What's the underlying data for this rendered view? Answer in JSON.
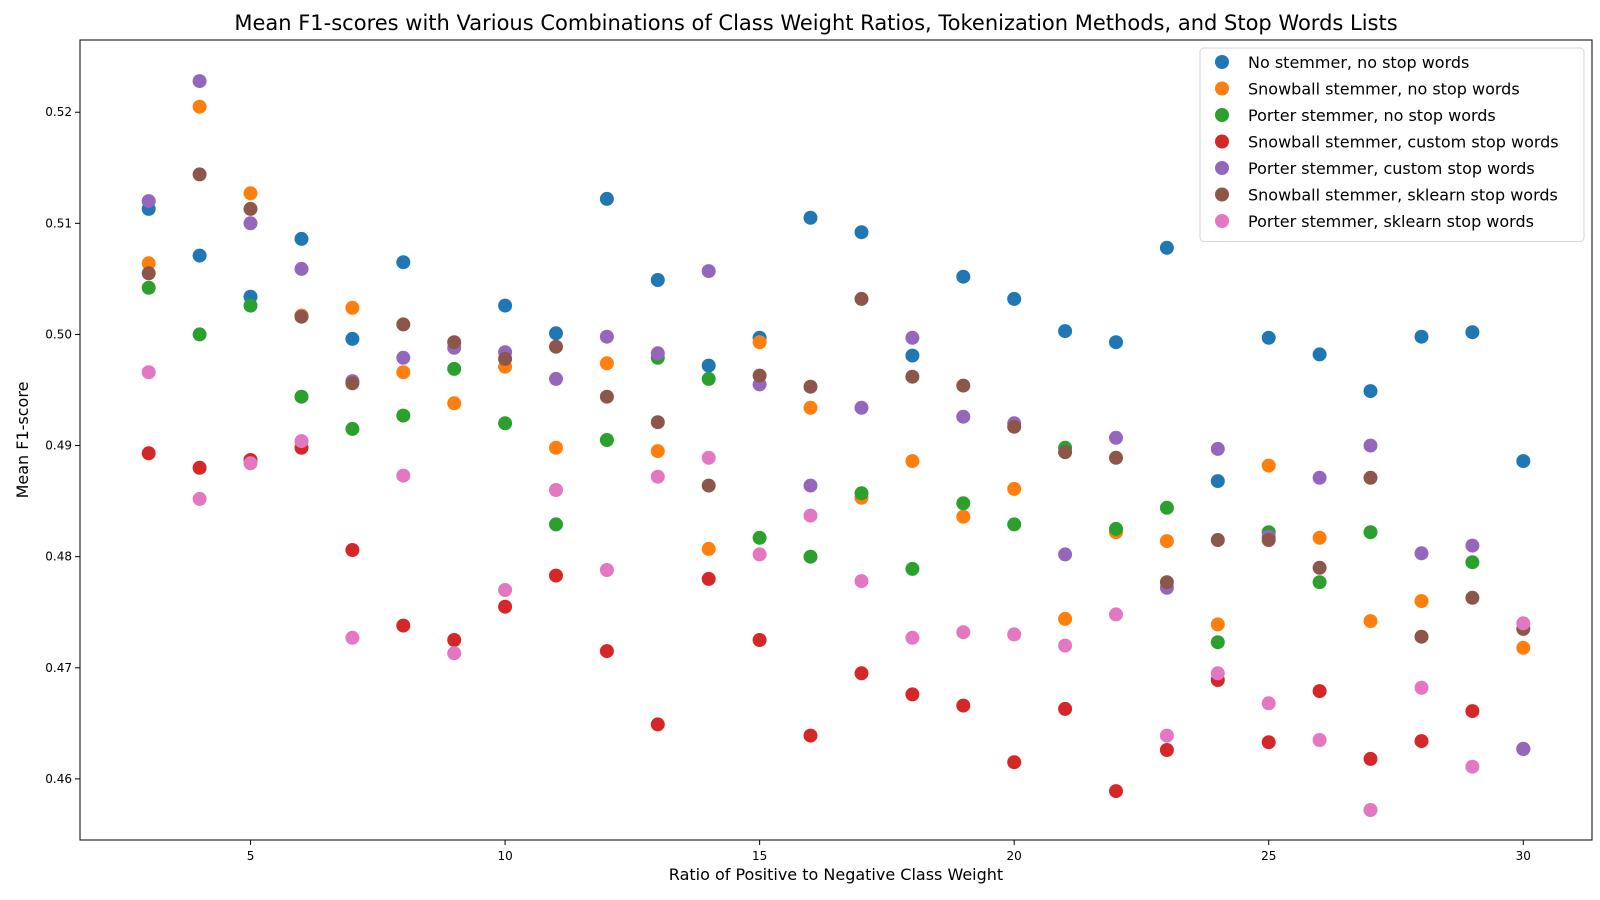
{
  "chart_data": {
    "type": "scatter",
    "title": "Mean F1-scores with Various Combinations of Class Weight Ratios, Tokenization Methods, and Stop Words Lists",
    "xlabel": "Ratio of Positive to Negative Class Weight",
    "ylabel": "Mean F1-score",
    "xlim": [
      1.65,
      31.35
    ],
    "ylim": [
      0.4545,
      0.5265
    ],
    "xticks": [
      5,
      10,
      15,
      20,
      25,
      30
    ],
    "yticks": [
      0.46,
      0.47,
      0.48,
      0.49,
      0.5,
      0.51,
      0.52
    ],
    "grid": false,
    "legend_position": "top-right",
    "x": [
      3,
      4,
      5,
      6,
      7,
      8,
      9,
      10,
      11,
      12,
      13,
      14,
      15,
      16,
      17,
      18,
      19,
      20,
      21,
      22,
      23,
      24,
      25,
      26,
      27,
      28,
      29,
      30
    ],
    "series": [
      {
        "name": "No stemmer, no stop words",
        "color": "#1f77b4",
        "values": [
          0.5113,
          0.5071,
          0.5034,
          0.5086,
          0.4996,
          0.5065,
          null,
          0.5026,
          0.5001,
          0.5122,
          0.5049,
          0.4972,
          0.4997,
          0.5105,
          0.5092,
          0.4981,
          0.5052,
          0.5032,
          0.5003,
          0.4993,
          0.5078,
          0.4868,
          0.4997,
          0.4982,
          0.4949,
          0.4998,
          0.5002,
          0.4886
        ]
      },
      {
        "name": "Snowball stemmer, no stop words",
        "color": "#ff7f0e",
        "values": [
          0.5064,
          0.5205,
          0.5127,
          0.5017,
          0.5024,
          0.4966,
          0.4938,
          0.4971,
          0.4898,
          0.4974,
          0.4895,
          0.4807,
          0.4993,
          0.4934,
          0.4853,
          0.4886,
          0.4836,
          0.4861,
          0.4744,
          0.4822,
          0.4814,
          0.4739,
          0.4882,
          0.4817,
          0.4742,
          0.476,
          null,
          0.4718
        ]
      },
      {
        "name": "Porter stemmer, no stop words",
        "color": "#2ca02c",
        "values": [
          0.5042,
          0.5,
          0.5026,
          0.4944,
          0.4915,
          0.4927,
          0.4969,
          0.492,
          0.4829,
          0.4905,
          0.4979,
          0.496,
          0.4817,
          0.48,
          0.4857,
          0.4789,
          0.4848,
          0.4829,
          0.4898,
          0.4825,
          0.4844,
          0.4723,
          0.4822,
          0.4777,
          0.4822,
          null,
          0.4795,
          null
        ]
      },
      {
        "name": "Snowball stemmer, custom stop words",
        "color": "#d62728",
        "values": [
          0.4893,
          0.488,
          0.4887,
          0.4898,
          0.4806,
          0.4738,
          0.4725,
          0.4755,
          0.4783,
          0.4715,
          0.4649,
          0.478,
          0.4725,
          0.4639,
          0.4695,
          0.4676,
          0.4666,
          0.4615,
          0.4663,
          0.4589,
          0.4626,
          0.4689,
          0.4633,
          0.4679,
          0.4618,
          0.4634,
          0.4661,
          0.4627
        ]
      },
      {
        "name": "Porter stemmer, custom stop words",
        "color": "#9467bd",
        "values": [
          0.512,
          0.5228,
          0.51,
          0.5059,
          0.4958,
          0.4979,
          0.4988,
          0.4984,
          0.496,
          0.4998,
          0.4983,
          0.5057,
          0.4955,
          0.4864,
          0.4934,
          0.4997,
          0.4926,
          0.492,
          0.4802,
          0.4907,
          0.4772,
          0.4897,
          0.4818,
          0.4871,
          0.49,
          0.4803,
          0.481,
          0.4627
        ]
      },
      {
        "name": "Snowball stemmer, sklearn stop words",
        "color": "#8c564b",
        "values": [
          0.5055,
          0.5144,
          0.5113,
          0.5016,
          0.4956,
          0.5009,
          0.4993,
          0.4978,
          0.4989,
          0.4944,
          0.4921,
          0.4864,
          0.4963,
          0.4953,
          0.5032,
          0.4962,
          0.4954,
          0.4917,
          0.4894,
          0.4889,
          0.4777,
          0.4815,
          0.4815,
          0.479,
          0.4871,
          0.4728,
          0.4763,
          0.4735
        ]
      },
      {
        "name": "Porter stemmer, sklearn stop words",
        "color": "#e377c2",
        "values": [
          0.4966,
          0.4852,
          0.4884,
          0.4904,
          0.4727,
          0.4873,
          0.4713,
          0.477,
          0.486,
          0.4788,
          0.4872,
          0.4889,
          0.4802,
          0.4837,
          0.4778,
          0.4727,
          0.4732,
          0.473,
          0.472,
          0.4748,
          0.4639,
          0.4695,
          0.4668,
          0.4635,
          0.4572,
          0.4682,
          0.4611,
          0.474
        ]
      }
    ]
  }
}
